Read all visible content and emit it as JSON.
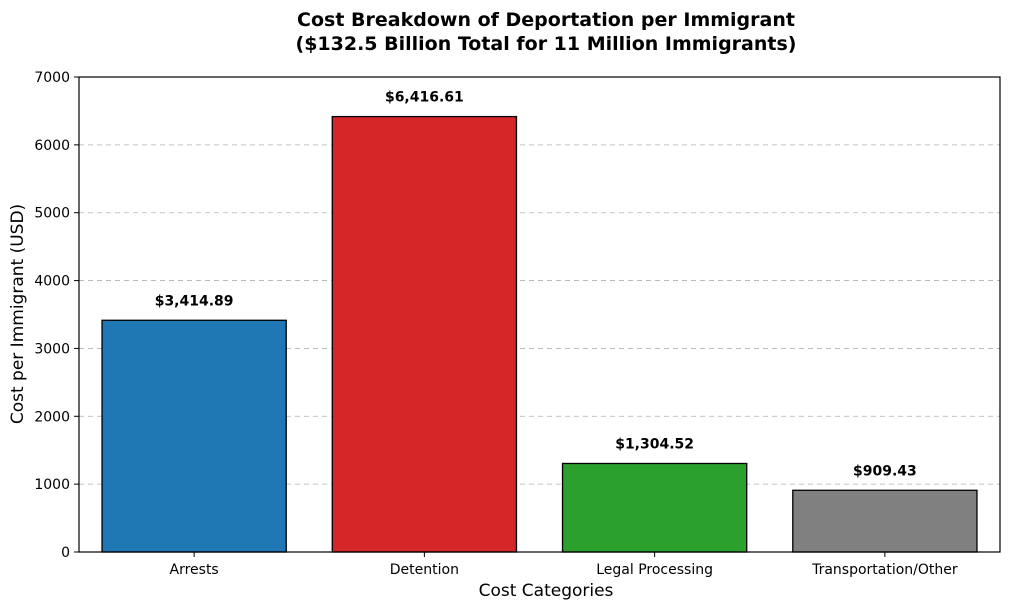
{
  "chart_data": {
    "type": "bar",
    "title_lines": [
      "Cost Breakdown of Deportation per Immigrant",
      "($132.5 Billion Total for 11 Million Immigrants)"
    ],
    "xlabel": "Cost Categories",
    "ylabel": "Cost per Immigrant (USD)",
    "categories": [
      "Arrests",
      "Detention",
      "Legal Processing",
      "Transportation/Other"
    ],
    "values": [
      3414.89,
      6416.61,
      1304.52,
      909.43
    ],
    "data_labels": [
      "$3,414.89",
      "$6,416.61",
      "$1,304.52",
      "$909.43"
    ],
    "colors": [
      "#1f77b4",
      "#d62728",
      "#2ca02c",
      "#808080"
    ],
    "ylim": [
      0,
      7000
    ],
    "yticks": [
      0,
      1000,
      2000,
      3000,
      4000,
      5000,
      6000,
      7000
    ],
    "grid": "y-dashed",
    "legend": "none"
  }
}
